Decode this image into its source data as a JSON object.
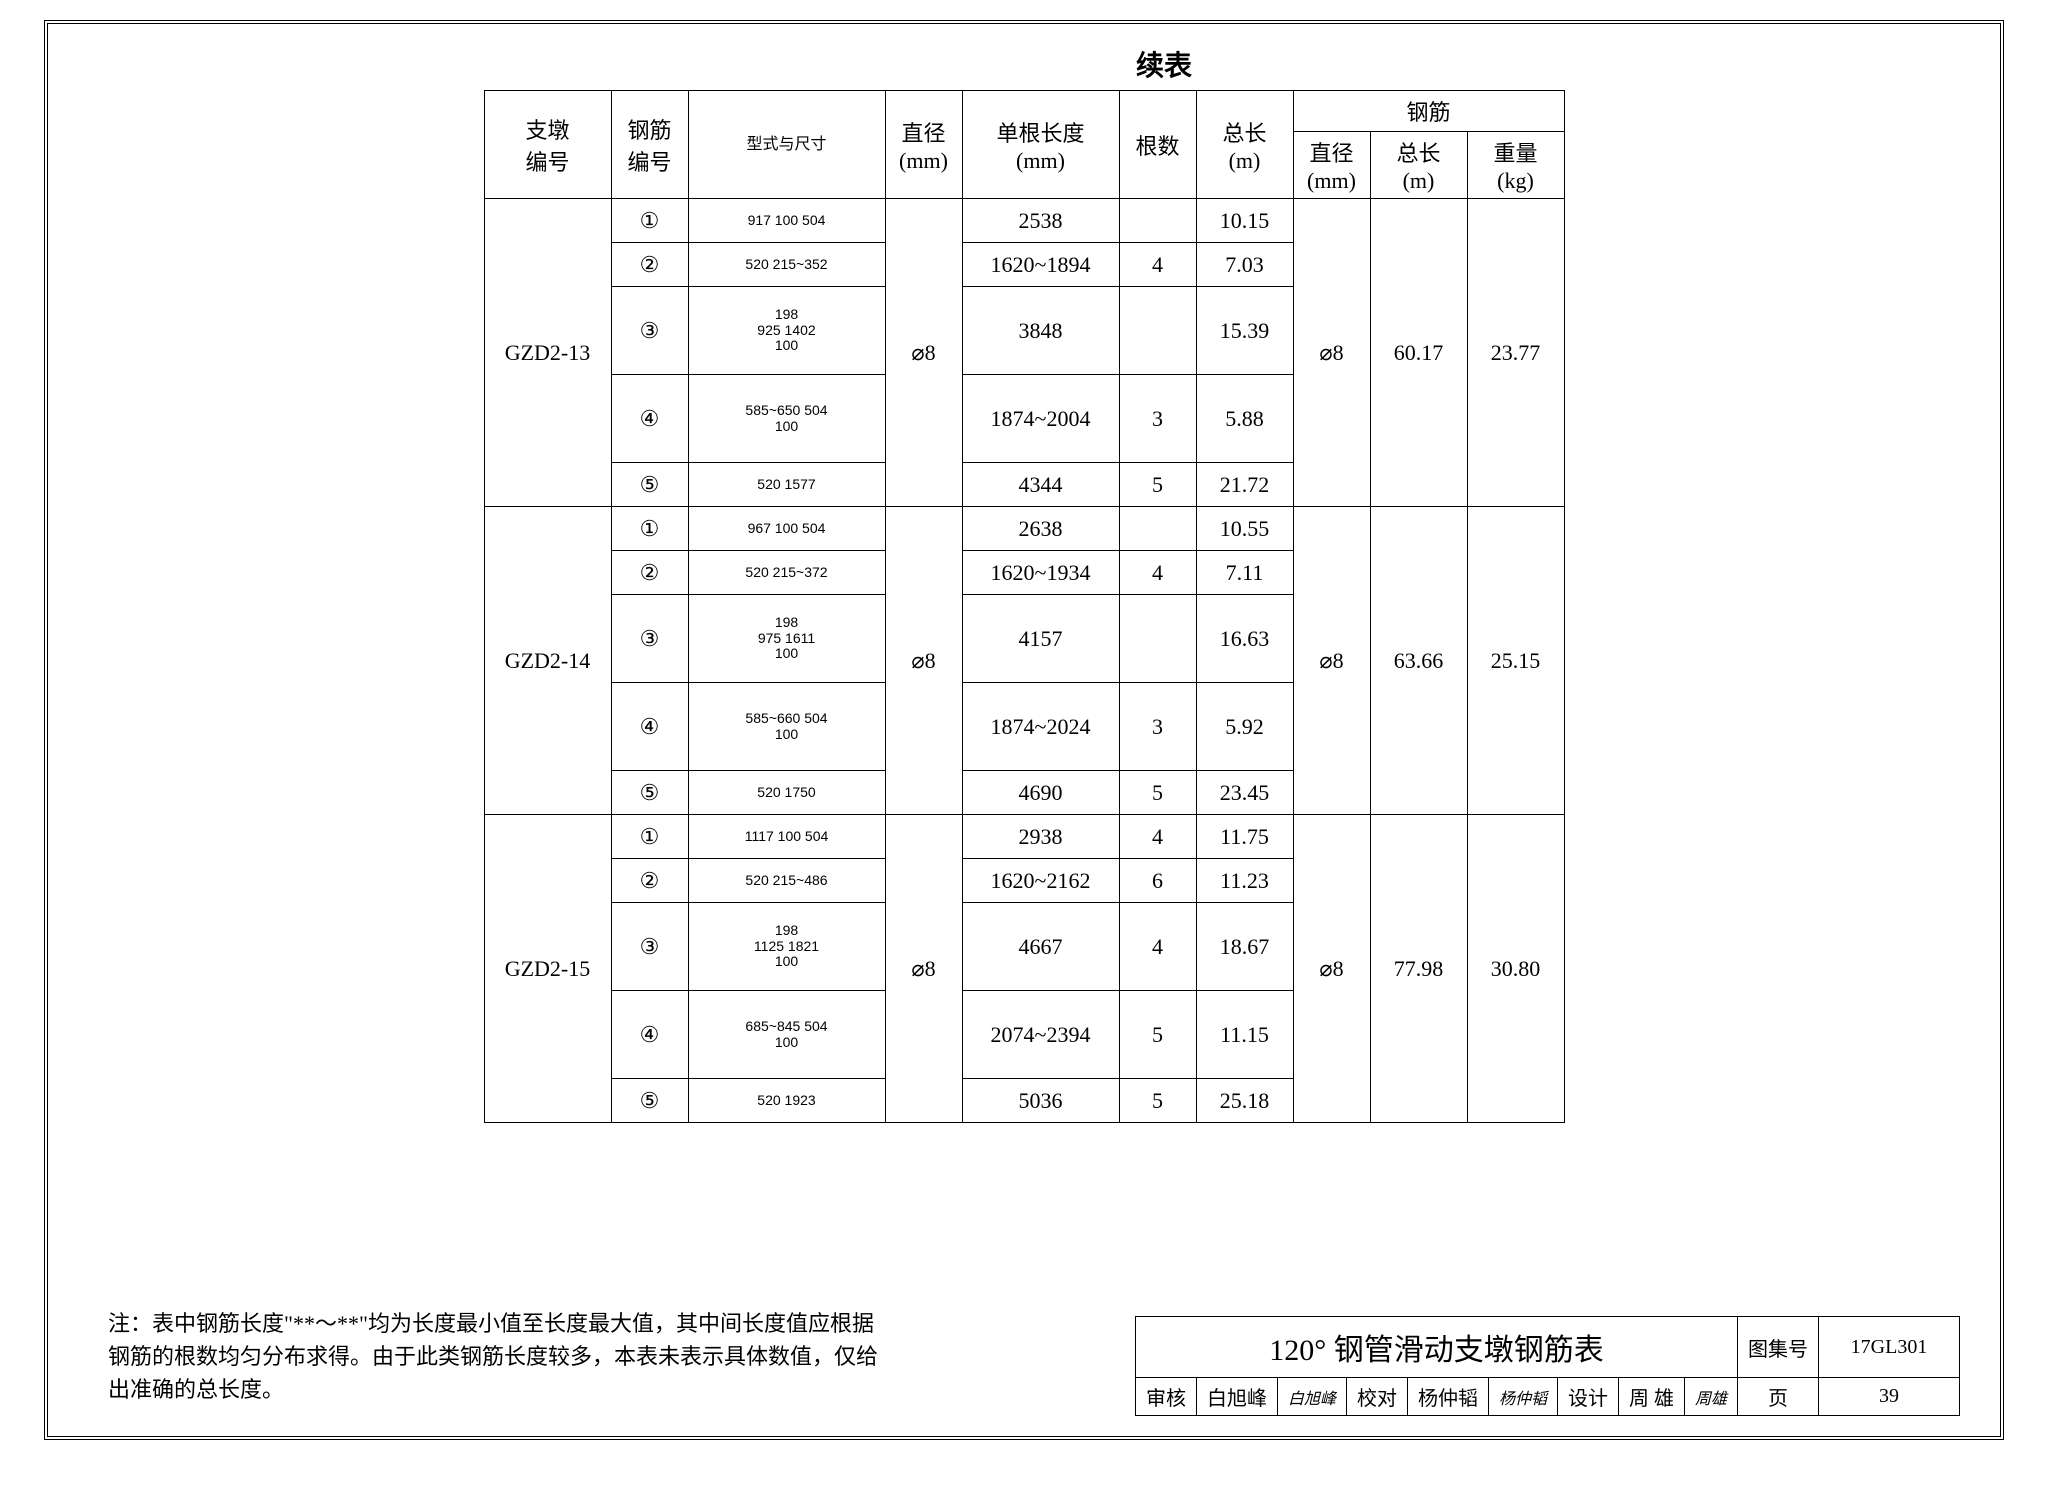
{
  "title": "续表",
  "headers": {
    "zhidun": "支墩\n编号",
    "gangjin_no": "钢筋\n编号",
    "shape": "型式与尺寸",
    "diameter": "直径\n(mm)",
    "single_len": "单根长度\n(mm)",
    "count": "根数",
    "total_len": "总长\n(m)",
    "steel_group": "钢筋",
    "s_dia": "直径\n(mm)",
    "s_len": "总长\n(m)",
    "s_wt": "重量\n(kg)"
  },
  "groups": [
    {
      "id": "GZD2-13",
      "diameter": "⌀8",
      "steel": {
        "dia": "⌀8",
        "len": "60.17",
        "wt": "23.77"
      },
      "rows": [
        {
          "n": "①",
          "shape": "917 100 504",
          "len": "2538",
          "cnt": "",
          "tot": "10.15",
          "tall": false
        },
        {
          "n": "②",
          "shape": "520 215~352",
          "len": "1620~1894",
          "cnt": "4",
          "tot": "7.03",
          "tall": false
        },
        {
          "n": "③",
          "shape": "198\n925 1402\n100",
          "len": "3848",
          "cnt": "",
          "tot": "15.39",
          "tall": true
        },
        {
          "n": "④",
          "shape": "585~650 504\n100",
          "len": "1874~2004",
          "cnt": "3",
          "tot": "5.88",
          "tall": true
        },
        {
          "n": "⑤",
          "shape": "520 1577",
          "len": "4344",
          "cnt": "5",
          "tot": "21.72",
          "tall": false
        }
      ]
    },
    {
      "id": "GZD2-14",
      "diameter": "⌀8",
      "steel": {
        "dia": "⌀8",
        "len": "63.66",
        "wt": "25.15"
      },
      "rows": [
        {
          "n": "①",
          "shape": "967 100 504",
          "len": "2638",
          "cnt": "",
          "tot": "10.55",
          "tall": false
        },
        {
          "n": "②",
          "shape": "520 215~372",
          "len": "1620~1934",
          "cnt": "4",
          "tot": "7.11",
          "tall": false
        },
        {
          "n": "③",
          "shape": "198\n975 1611\n100",
          "len": "4157",
          "cnt": "",
          "tot": "16.63",
          "tall": true
        },
        {
          "n": "④",
          "shape": "585~660 504\n100",
          "len": "1874~2024",
          "cnt": "3",
          "tot": "5.92",
          "tall": true
        },
        {
          "n": "⑤",
          "shape": "520 1750",
          "len": "4690",
          "cnt": "5",
          "tot": "23.45",
          "tall": false
        }
      ]
    },
    {
      "id": "GZD2-15",
      "diameter": "⌀8",
      "steel": {
        "dia": "⌀8",
        "len": "77.98",
        "wt": "30.80"
      },
      "rows": [
        {
          "n": "①",
          "shape": "1117 100 504",
          "len": "2938",
          "cnt": "4",
          "tot": "11.75",
          "tall": false
        },
        {
          "n": "②",
          "shape": "520 215~486",
          "len": "1620~2162",
          "cnt": "6",
          "tot": "11.23",
          "tall": false
        },
        {
          "n": "③",
          "shape": "198\n1125 1821\n100",
          "len": "4667",
          "cnt": "4",
          "tot": "18.67",
          "tall": true
        },
        {
          "n": "④",
          "shape": "685~845 504\n100",
          "len": "2074~2394",
          "cnt": "5",
          "tot": "11.15",
          "tall": true
        },
        {
          "n": "⑤",
          "shape": "520 1923",
          "len": "5036",
          "cnt": "5",
          "tot": "25.18",
          "tall": false
        }
      ]
    }
  ],
  "note": "注：表中钢筋长度\"**～**\"均为长度最小值至长度最大值，其中间长度值应根据钢筋的根数均匀分布求得。由于此类钢筋长度较多，本表未表示具体数值，仅给出准确的总长度。",
  "titleblock": {
    "main": "120° 钢管滑动支墩钢筋表",
    "tuji_label": "图集号",
    "tuji_val": "17GL301",
    "shenhe_label": "审核",
    "shenhe_name": "白旭峰",
    "jiaodui_label": "校对",
    "jiaodui_name": "杨仲韬",
    "sheji_label": "设计",
    "sheji_name": "周 雄",
    "page_label": "页",
    "page_val": "39"
  }
}
